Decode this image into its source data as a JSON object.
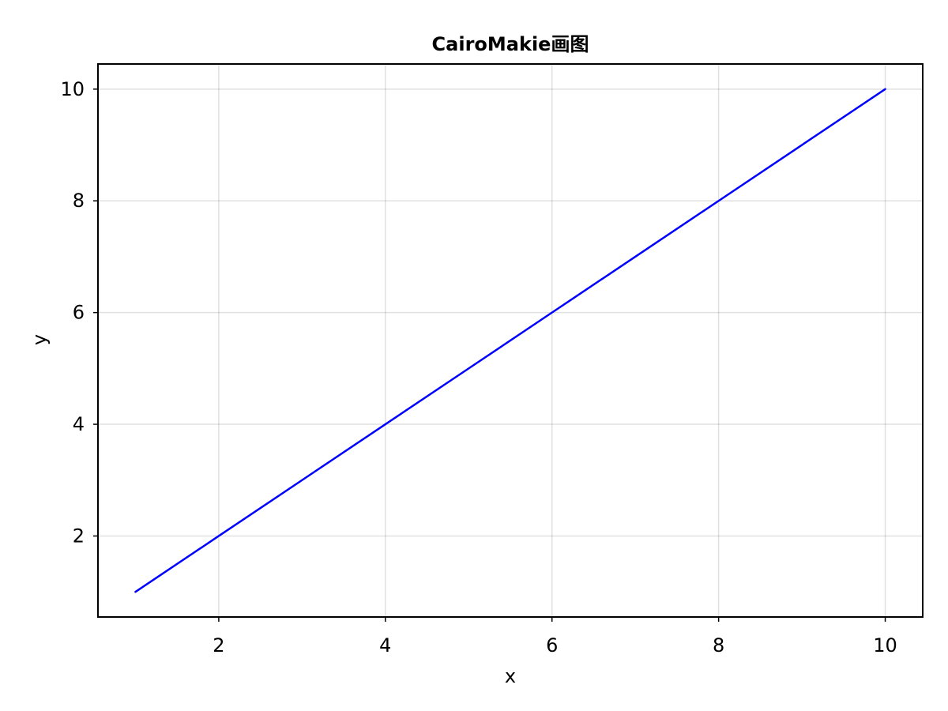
{
  "chart_data": {
    "type": "line",
    "title": "CairoMakie画图",
    "xlabel": "x",
    "ylabel": "y",
    "xlim": [
      0.55,
      10.45
    ],
    "ylim": [
      0.55,
      10.45
    ],
    "xticks": [
      2,
      4,
      6,
      8,
      10
    ],
    "yticks": [
      2,
      4,
      6,
      8,
      10
    ],
    "grid": true,
    "series": [
      {
        "x": [
          1,
          2,
          3,
          4,
          5,
          6,
          7,
          8,
          9,
          10
        ],
        "y": [
          1,
          2,
          3,
          4,
          5,
          6,
          7,
          8,
          9,
          10
        ],
        "color": "#0000ff"
      }
    ]
  }
}
